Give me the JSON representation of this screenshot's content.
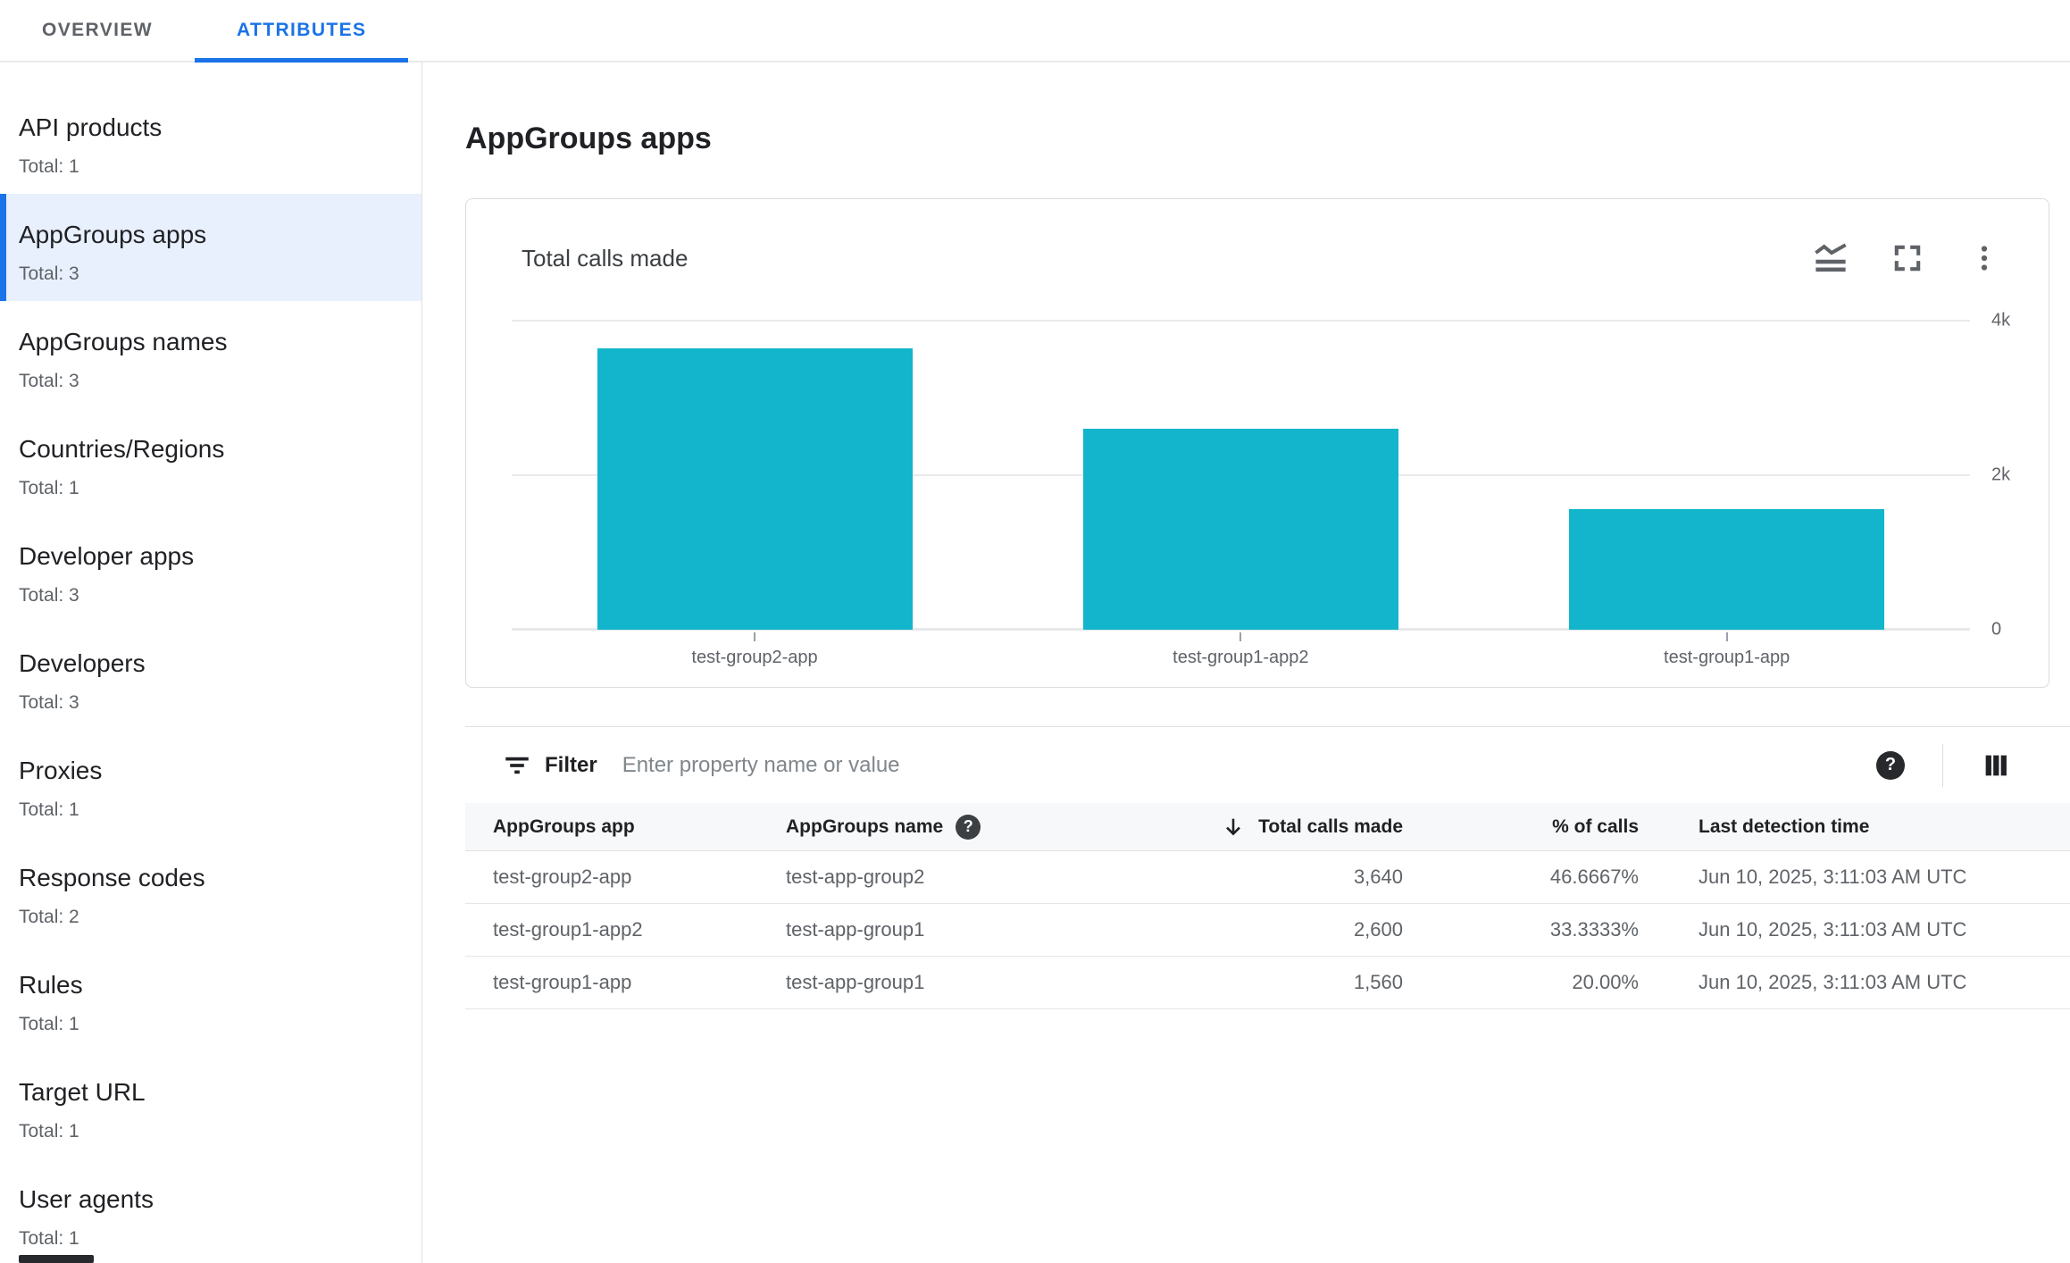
{
  "tabs": [
    {
      "label": "OVERVIEW",
      "active": false
    },
    {
      "label": "ATTRIBUTES",
      "active": true
    }
  ],
  "sidebar": {
    "selected_index": 1,
    "items": [
      {
        "label": "API products",
        "total": "Total: 1"
      },
      {
        "label": "AppGroups apps",
        "total": "Total: 3"
      },
      {
        "label": "AppGroups names",
        "total": "Total: 3"
      },
      {
        "label": "Countries/Regions",
        "total": "Total: 1"
      },
      {
        "label": "Developer apps",
        "total": "Total: 3"
      },
      {
        "label": "Developers",
        "total": "Total: 3"
      },
      {
        "label": "Proxies",
        "total": "Total: 1"
      },
      {
        "label": "Response codes",
        "total": "Total: 2"
      },
      {
        "label": "Rules",
        "total": "Total: 1"
      },
      {
        "label": "Target URL",
        "total": "Total: 1"
      },
      {
        "label": "User agents",
        "total": "Total: 1"
      }
    ]
  },
  "main": {
    "title": "AppGroups apps"
  },
  "chart_card": {
    "title": "Total calls made",
    "icons": [
      "chart-type-icon",
      "fullscreen-icon",
      "kebab-menu-icon"
    ]
  },
  "chart_data": {
    "type": "bar",
    "title": "Total calls made",
    "categories": [
      "test-group2-app",
      "test-group1-app2",
      "test-group1-app"
    ],
    "values": [
      3640,
      2600,
      1560
    ],
    "xlabel": "",
    "ylabel": "",
    "ylim": [
      0,
      4000
    ],
    "yticks": [
      {
        "label": "4k",
        "value": 4000
      },
      {
        "label": "2k",
        "value": 2000
      },
      {
        "label": "0",
        "value": 0
      }
    ],
    "grid": true,
    "y_axis_side": "right",
    "legend": "none",
    "bar_color": "#12b5cb"
  },
  "filter": {
    "label": "Filter",
    "placeholder": "Enter property name or value"
  },
  "table": {
    "columns": [
      {
        "label": "AppGroups app",
        "align": "left",
        "help_icon": false,
        "sorted": false
      },
      {
        "label": "AppGroups name",
        "align": "left",
        "help_icon": true,
        "sorted": false
      },
      {
        "label": "Total calls made",
        "align": "right",
        "help_icon": false,
        "sorted": "desc"
      },
      {
        "label": "% of calls",
        "align": "right",
        "help_icon": false,
        "sorted": false
      },
      {
        "label": "Last detection time",
        "align": "left",
        "help_icon": false,
        "sorted": false
      }
    ],
    "rows": [
      [
        "test-group2-app",
        "test-app-group2",
        "3,640",
        "46.6667%",
        "Jun 10, 2025, 3:11:03 AM UTC"
      ],
      [
        "test-group1-app2",
        "test-app-group1",
        "2,600",
        "33.3333%",
        "Jun 10, 2025, 3:11:03 AM UTC"
      ],
      [
        "test-group1-app",
        "test-app-group1",
        "1,560",
        "20.00%",
        "Jun 10, 2025, 3:11:03 AM UTC"
      ]
    ]
  },
  "colors": {
    "accent_blue": "#1a73e8",
    "bar_teal": "#12b5cb",
    "selected_bg": "#e8f0fe",
    "text_primary": "#202124",
    "text_secondary": "#5f6368"
  }
}
